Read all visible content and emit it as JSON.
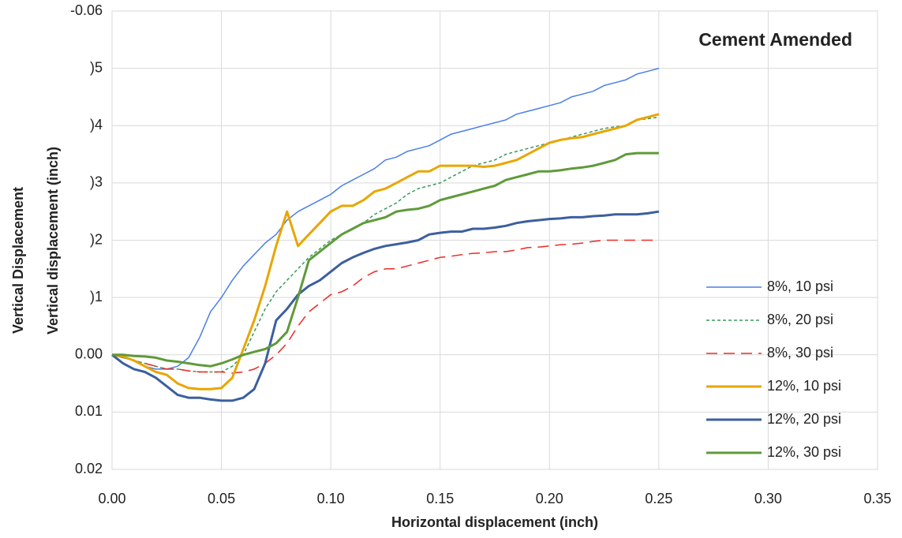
{
  "chart_data": {
    "type": "line",
    "title": "Cement Amended",
    "x_label": "Horizontal displacement (inch)",
    "y_label": "Vertical displacement (inch)",
    "y_label_behind": "Vertical Displacement",
    "xlim": [
      0,
      0.35
    ],
    "xticks": [
      {
        "value": 0,
        "label": "0.00"
      },
      0.05,
      {
        "value": 0.1,
        "label": "0.10"
      },
      0.15,
      {
        "value": 0.2,
        "label": "0.20"
      },
      0.25,
      {
        "value": 0.3,
        "label": "0.30"
      },
      0.35
    ],
    "ylim": [
      -0.06,
      0.02
    ],
    "y_inverted": true,
    "yticks": [
      -0.06,
      {
        "value": -0.05,
        "label": ")5"
      },
      {
        "value": -0.04,
        "label": ")4"
      },
      {
        "value": -0.03,
        "label": ")3"
      },
      {
        "value": -0.02,
        "label": ")2"
      },
      {
        "value": -0.01,
        "label": ")1"
      },
      {
        "value": 0,
        "label": "0.00"
      },
      0.01,
      0.02
    ],
    "grid": true,
    "legend": "right",
    "x": [
      0,
      0.005,
      0.01,
      0.015,
      0.02,
      0.025,
      0.03,
      0.035,
      0.04,
      0.045,
      0.05,
      0.055,
      0.06,
      0.065,
      0.07,
      0.075,
      0.08,
      0.085,
      0.09,
      0.095,
      0.1,
      0.105,
      0.11,
      0.115,
      0.12,
      0.125,
      0.13,
      0.135,
      0.14,
      0.145,
      0.15,
      0.155,
      0.16,
      0.165,
      0.17,
      0.175,
      0.18,
      0.185,
      0.19,
      0.195,
      0.2,
      0.205,
      0.21,
      0.215,
      0.22,
      0.225,
      0.23,
      0.235,
      0.24,
      0.245,
      0.25
    ],
    "series": [
      {
        "name": "8%, 10 psi",
        "color": "#4a7fe8",
        "width": 1.5,
        "dash": "solid",
        "values": [
          0,
          0.0005,
          0.001,
          0.002,
          0.0025,
          0.0025,
          0.002,
          0.0005,
          -0.003,
          -0.0075,
          -0.01,
          -0.013,
          -0.0155,
          -0.0175,
          -0.0195,
          -0.021,
          -0.0235,
          -0.025,
          -0.026,
          -0.027,
          -0.028,
          -0.0295,
          -0.0305,
          -0.0315,
          -0.0325,
          -0.034,
          -0.0345,
          -0.0355,
          -0.036,
          -0.0365,
          -0.0375,
          -0.0385,
          -0.039,
          -0.0395,
          -0.04,
          -0.0405,
          -0.041,
          -0.042,
          -0.0425,
          -0.043,
          -0.0435,
          -0.044,
          -0.045,
          -0.0455,
          -0.046,
          -0.047,
          -0.0475,
          -0.048,
          -0.049,
          -0.0495,
          -0.05
        ]
      },
      {
        "name": "8%, 20 psi",
        "color": "#3a9a5b",
        "width": 1.5,
        "dash": "dotted",
        "values": [
          0,
          0.0005,
          0.001,
          0.0015,
          0.002,
          0.0025,
          0.0025,
          0.0028,
          0.003,
          0.003,
          0.003,
          0.002,
          0,
          -0.004,
          -0.008,
          -0.011,
          -0.013,
          -0.015,
          -0.017,
          -0.0185,
          -0.02,
          -0.021,
          -0.022,
          -0.023,
          -0.0245,
          -0.0255,
          -0.0265,
          -0.028,
          -0.029,
          -0.0295,
          -0.03,
          -0.031,
          -0.032,
          -0.033,
          -0.0335,
          -0.034,
          -0.035,
          -0.0355,
          -0.036,
          -0.0365,
          -0.037,
          -0.0375,
          -0.038,
          -0.0385,
          -0.039,
          -0.0395,
          -0.0398,
          -0.04,
          -0.041,
          -0.0412,
          -0.0415
        ]
      },
      {
        "name": "8%, 30 psi",
        "color": "#ee2a24",
        "width": 1.5,
        "dash": "dashed",
        "values": [
          0,
          0.0005,
          0.001,
          0.0015,
          0.002,
          0.0025,
          0.0025,
          0.0028,
          0.003,
          0.003,
          0.003,
          0.0032,
          0.003,
          0.0025,
          0.0015,
          0,
          -0.002,
          -0.005,
          -0.0075,
          -0.009,
          -0.0105,
          -0.011,
          -0.012,
          -0.0135,
          -0.0145,
          -0.015,
          -0.015,
          -0.0155,
          -0.016,
          -0.0165,
          -0.017,
          -0.0172,
          -0.0175,
          -0.0177,
          -0.0178,
          -0.018,
          -0.018,
          -0.0183,
          -0.0187,
          -0.0188,
          -0.019,
          -0.0192,
          -0.0193,
          -0.0195,
          -0.0198,
          -0.02,
          -0.02,
          -0.02,
          -0.02,
          -0.02,
          -0.02
        ]
      },
      {
        "name": "12%, 10 psi",
        "color": "#e8a600",
        "width": 3,
        "dash": "solid",
        "values": [
          0,
          0.0003,
          0.001,
          0.002,
          0.003,
          0.0035,
          0.005,
          0.0058,
          0.006,
          0.006,
          0.0058,
          0.004,
          -0.001,
          -0.006,
          -0.012,
          -0.019,
          -0.025,
          -0.019,
          -0.021,
          -0.023,
          -0.025,
          -0.026,
          -0.026,
          -0.027,
          -0.0285,
          -0.029,
          -0.03,
          -0.031,
          -0.032,
          -0.032,
          -0.033,
          -0.033,
          -0.033,
          -0.033,
          -0.0328,
          -0.033,
          -0.0335,
          -0.034,
          -0.035,
          -0.036,
          -0.037,
          -0.0375,
          -0.0378,
          -0.038,
          -0.0385,
          -0.039,
          -0.0395,
          -0.04,
          -0.041,
          -0.0415,
          -0.042
        ]
      },
      {
        "name": "12%, 20 psi",
        "color": "#3c5f9e",
        "width": 3,
        "dash": "solid",
        "values": [
          0,
          0.0015,
          0.0025,
          0.003,
          0.004,
          0.0055,
          0.007,
          0.0075,
          0.0075,
          0.0078,
          0.008,
          0.008,
          0.0075,
          0.006,
          0.0015,
          -0.006,
          -0.008,
          -0.0105,
          -0.012,
          -0.013,
          -0.0145,
          -0.016,
          -0.017,
          -0.0178,
          -0.0185,
          -0.019,
          -0.0193,
          -0.0196,
          -0.02,
          -0.021,
          -0.0213,
          -0.0215,
          -0.0215,
          -0.022,
          -0.022,
          -0.0222,
          -0.0225,
          -0.023,
          -0.0233,
          -0.0235,
          -0.0237,
          -0.0238,
          -0.024,
          -0.024,
          -0.0242,
          -0.0243,
          -0.0245,
          -0.0245,
          -0.0245,
          -0.0247,
          -0.025
        ]
      },
      {
        "name": "12%, 30 psi",
        "color": "#5f9a3a",
        "width": 3,
        "dash": "solid",
        "values": [
          0,
          0,
          0.0002,
          0.0003,
          0.0005,
          0.001,
          0.0012,
          0.0015,
          0.0018,
          0.002,
          0.0015,
          0.0008,
          0,
          -0.0005,
          -0.001,
          -0.002,
          -0.004,
          -0.01,
          -0.0165,
          -0.018,
          -0.0195,
          -0.021,
          -0.022,
          -0.023,
          -0.0235,
          -0.024,
          -0.025,
          -0.0253,
          -0.0255,
          -0.026,
          -0.027,
          -0.0275,
          -0.028,
          -0.0285,
          -0.029,
          -0.0295,
          -0.0305,
          -0.031,
          -0.0315,
          -0.032,
          -0.032,
          -0.0322,
          -0.0325,
          -0.0327,
          -0.033,
          -0.0335,
          -0.034,
          -0.035,
          -0.0352,
          -0.0352,
          -0.0352
        ]
      }
    ]
  }
}
